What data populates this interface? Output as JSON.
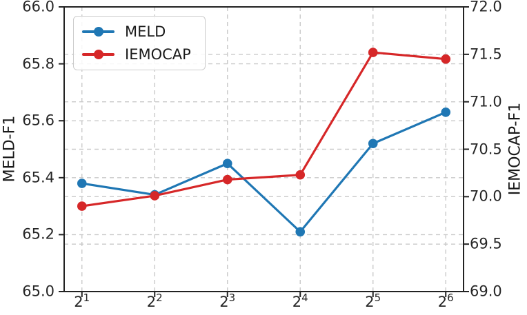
{
  "figure_title": "",
  "legend": {
    "items": [
      {
        "label": "MELD",
        "color": "#1f77b4"
      },
      {
        "label": "IEMOCAP",
        "color": "#d62728"
      }
    ]
  },
  "chart_data": {
    "type": "line",
    "x_tick_labels": [
      "2^1",
      "2^2",
      "2^3",
      "2^4",
      "2^5",
      "2^6"
    ],
    "left_axis": {
      "label": "MELD-F1",
      "min": 65.0,
      "max": 66.0,
      "ticks": [
        65.0,
        65.2,
        65.4,
        65.6,
        65.8,
        66.0
      ],
      "tick_labels": [
        "65.0",
        "65.2",
        "65.4",
        "65.6",
        "65.8",
        "66.0"
      ]
    },
    "right_axis": {
      "label": "IEMOCAP-F1",
      "min": 69.0,
      "max": 72.0,
      "ticks": [
        69.0,
        69.5,
        70.0,
        70.5,
        71.0,
        71.5,
        72.0
      ],
      "tick_labels": [
        "69.0",
        "69.5",
        "70.0",
        "70.5",
        "71.0",
        "71.5",
        "72.0"
      ]
    },
    "series": [
      {
        "name": "MELD",
        "axis": "left",
        "color": "#1f77b4",
        "values": [
          65.38,
          65.34,
          65.45,
          65.21,
          65.52,
          65.63
        ]
      },
      {
        "name": "IEMOCAP",
        "axis": "right",
        "color": "#d62728",
        "values": [
          69.9,
          70.01,
          70.18,
          70.23,
          71.52,
          71.45
        ]
      }
    ],
    "grid": true,
    "grid_style": "dashed",
    "legend_position": "upper left",
    "marker": "circle"
  },
  "colors": {
    "meld_blue": "#1f77b4",
    "iemocap_red": "#d62728",
    "grid": "#c9c9c9",
    "spine": "#222222",
    "text": "#262626"
  }
}
